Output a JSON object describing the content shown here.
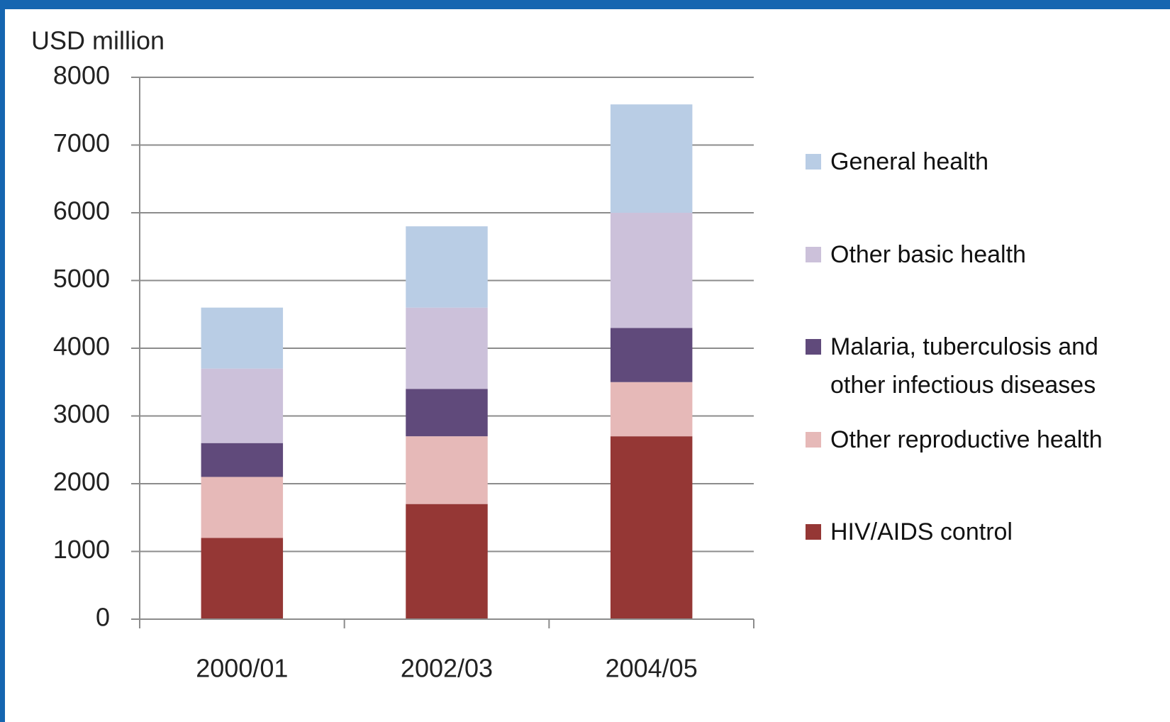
{
  "chart_data": {
    "type": "bar",
    "stacked": true,
    "ylabel": "USD million",
    "categories": [
      "2000/01",
      "2002/03",
      "2004/05"
    ],
    "series": [
      {
        "name": "HIV/AIDS control",
        "color": "#953735",
        "values": [
          1200,
          1700,
          2700
        ]
      },
      {
        "name": "Other reproductive health",
        "color": "#e6b9b8",
        "values": [
          900,
          1000,
          800
        ]
      },
      {
        "name": "Malaria, tuberculosis  and other infectious  diseases",
        "color": "#604a7b",
        "values": [
          500,
          700,
          800
        ]
      },
      {
        "name": "Other basic health",
        "color": "#ccc1da",
        "values": [
          1100,
          1200,
          1700
        ]
      },
      {
        "name": "General health",
        "color": "#b9cde5",
        "values": [
          900,
          1200,
          1600
        ]
      }
    ],
    "ylim": [
      0,
      8000
    ],
    "yticks": [
      0,
      1000,
      2000,
      3000,
      4000,
      5000,
      6000,
      7000,
      8000
    ],
    "grid": true,
    "legend": "right"
  }
}
